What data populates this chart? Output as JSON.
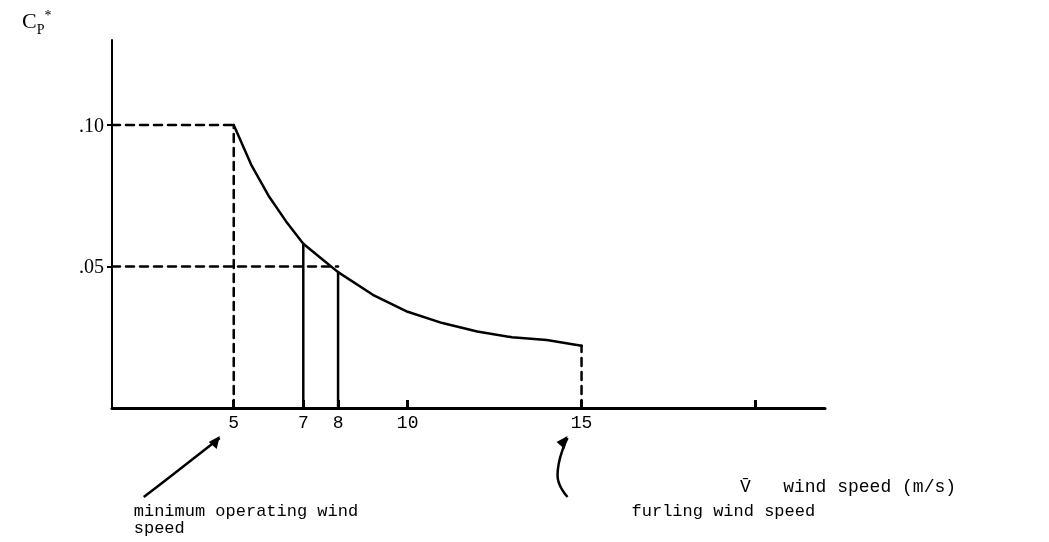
{
  "chart_data": {
    "type": "line",
    "xlabel": "V̄   wind speed (m/s)",
    "ylabel": "C$_{P}$$^{*}$",
    "xlim": [
      1.5,
      22
    ],
    "xticks": [
      5,
      7,
      8,
      10,
      15,
      {
        "value": 20,
        "label": null
      }
    ],
    "ylim": [
      0,
      0.13
    ],
    "yticks": [
      {
        "value": 0.05,
        "label": ".05"
      },
      {
        "value": 0.1,
        "label": ".10"
      }
    ],
    "grid": false,
    "marker": "none",
    "series": [
      {
        "color": "#000000",
        "line_style": "solid",
        "x": [
          5,
          5.5,
          6,
          6.5,
          7,
          7.5,
          8,
          9,
          10,
          11,
          12,
          13,
          14,
          15
        ],
        "values": [
          0.1,
          0.086,
          0.075,
          0.066,
          0.058,
          0.053,
          0.048,
          0.04,
          0.034,
          0.03,
          0.027,
          0.025,
          0.024,
          0.022
        ]
      },
      {
        "color": "#000000",
        "line_style": "dashed",
        "x": [
          5,
          5
        ],
        "values": [
          0,
          0.1
        ]
      },
      {
        "color": "#000000",
        "line_style": "dashed",
        "x": [
          1.5,
          5
        ],
        "values": [
          0.1,
          0.1
        ]
      },
      {
        "color": "#000000",
        "line_style": "dashed",
        "x": [
          1.5,
          8
        ],
        "values": [
          0.05,
          0.05
        ]
      },
      {
        "color": "#000000",
        "line_style": "solid",
        "x": [
          7,
          7
        ],
        "values": [
          0,
          0.058
        ]
      },
      {
        "color": "#000000",
        "line_style": "solid",
        "x": [
          8,
          8
        ],
        "values": [
          0,
          0.048
        ]
      },
      {
        "color": "#000000",
        "line_style": "dashed",
        "x": [
          15,
          15
        ],
        "values": [
          0,
          0.022
        ]
      }
    ],
    "annotations": [
      "minimum operating wind speed",
      "furling wind speed"
    ]
  }
}
